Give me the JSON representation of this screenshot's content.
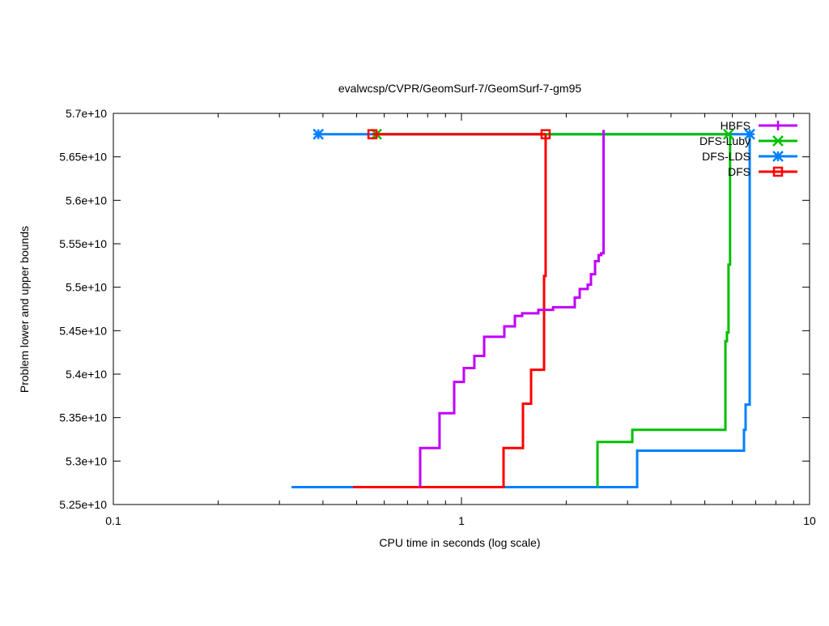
{
  "chart_data": {
    "type": "line",
    "title": "evalwcsp/CVPR/GeomSurf-7/GeomSurf-7-gm95",
    "xlabel": "CPU time in seconds (log scale)",
    "ylabel": "Problem lower and upper bounds",
    "xscale": "log",
    "xlim": [
      0.1,
      10
    ],
    "ylim": [
      52500000000.0,
      57000000000.0
    ],
    "y_unit": 10000000000.0,
    "xticks": [
      {
        "v": 0.1,
        "label": "0.1"
      },
      {
        "v": 1,
        "label": "1"
      },
      {
        "v": 10,
        "label": "10"
      }
    ],
    "yticks": [
      {
        "v": 5.25,
        "label": "5.25e+10"
      },
      {
        "v": 5.3,
        "label": "5.3e+10"
      },
      {
        "v": 5.35,
        "label": "5.35e+10"
      },
      {
        "v": 5.4,
        "label": "5.4e+10"
      },
      {
        "v": 5.45,
        "label": "5.45e+10"
      },
      {
        "v": 5.5,
        "label": "5.5e+10"
      },
      {
        "v": 5.55,
        "label": "5.55e+10"
      },
      {
        "v": 5.6,
        "label": "5.6e+10"
      },
      {
        "v": 5.65,
        "label": "5.65e+10"
      },
      {
        "v": 5.7,
        "label": "5.7e+10"
      }
    ],
    "legend_position": "top-right",
    "series": [
      {
        "name": "HBFS",
        "color": "#c000ff",
        "marker": "plus",
        "lower_steps": [
          [
            0.761,
            5.27
          ],
          [
            0.761,
            5.315
          ],
          [
            0.865,
            5.355
          ],
          [
            0.953,
            5.391
          ],
          [
            1.016,
            5.407
          ],
          [
            1.089,
            5.421
          ],
          [
            1.162,
            5.443
          ],
          [
            1.328,
            5.455
          ],
          [
            1.424,
            5.467
          ],
          [
            1.494,
            5.47
          ],
          [
            1.663,
            5.474
          ],
          [
            1.833,
            5.477
          ],
          [
            2.116,
            5.488
          ],
          [
            2.186,
            5.498
          ],
          [
            2.305,
            5.503
          ],
          [
            2.355,
            5.515
          ],
          [
            2.42,
            5.53
          ],
          [
            2.478,
            5.537
          ],
          [
            2.52,
            5.539
          ],
          [
            2.56,
            5.681
          ]
        ],
        "upper": null
      },
      {
        "name": "DFS-Luby",
        "color": "#00c000",
        "marker": "x",
        "lower_steps": [
          [
            2.459,
            5.27
          ],
          [
            2.459,
            5.322
          ],
          [
            3.096,
            5.336
          ],
          [
            5.731,
            5.438
          ],
          [
            5.79,
            5.448
          ],
          [
            5.85,
            5.526
          ],
          [
            5.91,
            5.676
          ]
        ],
        "upper": {
          "x": [
            0.57,
            5.85
          ],
          "y": 5.676
        }
      },
      {
        "name": "DFS-LDS",
        "color": "#0080ff",
        "marker": "star",
        "lower_steps": [
          [
            0.325,
            5.27
          ],
          [
            3.197,
            5.312
          ],
          [
            6.48,
            5.336
          ],
          [
            6.55,
            5.365
          ],
          [
            6.73,
            5.676
          ]
        ],
        "upper": {
          "x": [
            0.388,
            6.73
          ],
          "y": 5.676
        }
      },
      {
        "name": "DFS",
        "color": "#ff0000",
        "marker": "square",
        "lower_steps": [
          [
            0.488,
            5.27
          ],
          [
            1.321,
            5.315
          ],
          [
            1.502,
            5.366
          ],
          [
            1.585,
            5.405
          ],
          [
            1.727,
            5.513
          ],
          [
            1.745,
            5.676
          ]
        ],
        "upper": {
          "x": [
            0.555,
            1.745
          ],
          "y": 5.676
        }
      }
    ]
  }
}
